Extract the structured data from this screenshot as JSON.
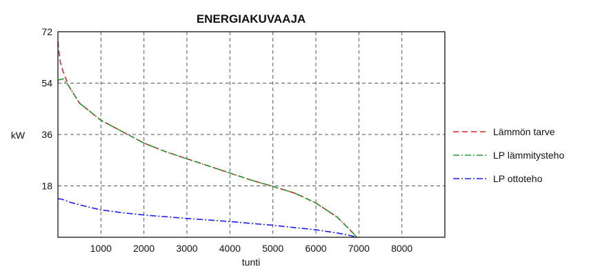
{
  "chart_data": {
    "type": "line",
    "title": "ENERGIAKUVAAJA",
    "xlabel": "tunti",
    "ylabel": "kW",
    "xlim": [
      0,
      9000
    ],
    "ylim": [
      0,
      72
    ],
    "x_ticks": [
      1000,
      2000,
      3000,
      4000,
      5000,
      6000,
      7000,
      8000
    ],
    "y_ticks": [
      18,
      36,
      54,
      72
    ],
    "grid": true,
    "legend_position": "right",
    "series": [
      {
        "name": "Lämmön tarve",
        "color": "#e31a1c",
        "dash": "dashed",
        "points": [
          [
            0,
            68.5
          ],
          [
            30,
            64
          ],
          [
            60,
            61
          ],
          [
            120,
            58
          ],
          [
            250,
            53
          ],
          [
            500,
            47
          ],
          [
            1000,
            41
          ],
          [
            1500,
            37
          ],
          [
            2000,
            33
          ],
          [
            2500,
            30
          ],
          [
            3000,
            27.5
          ],
          [
            3500,
            25
          ],
          [
            4000,
            22.5
          ],
          [
            4500,
            20
          ],
          [
            5000,
            17.8
          ],
          [
            5500,
            15.5
          ],
          [
            6000,
            12
          ],
          [
            6500,
            7
          ],
          [
            6800,
            2.5
          ],
          [
            6950,
            0
          ]
        ]
      },
      {
        "name": "LP lämmitysteho",
        "color": "#1f9a2e",
        "dash": "dashdot",
        "points": [
          [
            0,
            55
          ],
          [
            60,
            55.3
          ],
          [
            120,
            55.5
          ],
          [
            250,
            53
          ],
          [
            500,
            47
          ],
          [
            1000,
            41
          ],
          [
            1500,
            37
          ],
          [
            2000,
            33
          ],
          [
            2500,
            30
          ],
          [
            3000,
            27.5
          ],
          [
            3500,
            25
          ],
          [
            4000,
            22.5
          ],
          [
            4500,
            20
          ],
          [
            5000,
            17.8
          ],
          [
            5500,
            15.5
          ],
          [
            6000,
            12
          ],
          [
            6500,
            7
          ],
          [
            6800,
            2.5
          ],
          [
            6950,
            0
          ]
        ]
      },
      {
        "name": "LP ottoteho",
        "color": "#1a1aff",
        "dash": "dashdot",
        "points": [
          [
            0,
            13.5
          ],
          [
            100,
            13.3
          ],
          [
            300,
            12.2
          ],
          [
            600,
            11
          ],
          [
            1000,
            9.6
          ],
          [
            1500,
            8.6
          ],
          [
            2000,
            7.8
          ],
          [
            3000,
            6.6
          ],
          [
            4000,
            5.5
          ],
          [
            5000,
            4.2
          ],
          [
            6000,
            2.6
          ],
          [
            6500,
            1.5
          ],
          [
            6800,
            0.6
          ],
          [
            6950,
            0
          ]
        ]
      }
    ]
  }
}
